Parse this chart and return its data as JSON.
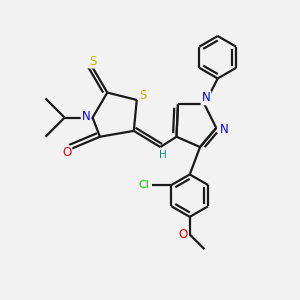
{
  "bg_color": "#f2f2f2",
  "bond_color": "#1a1a1a",
  "bond_width": 1.6,
  "atom_colors": {
    "N": "#0000ee",
    "O": "#ee0000",
    "S": "#bbbb00",
    "Cl": "#00cc00",
    "H": "#008888"
  }
}
